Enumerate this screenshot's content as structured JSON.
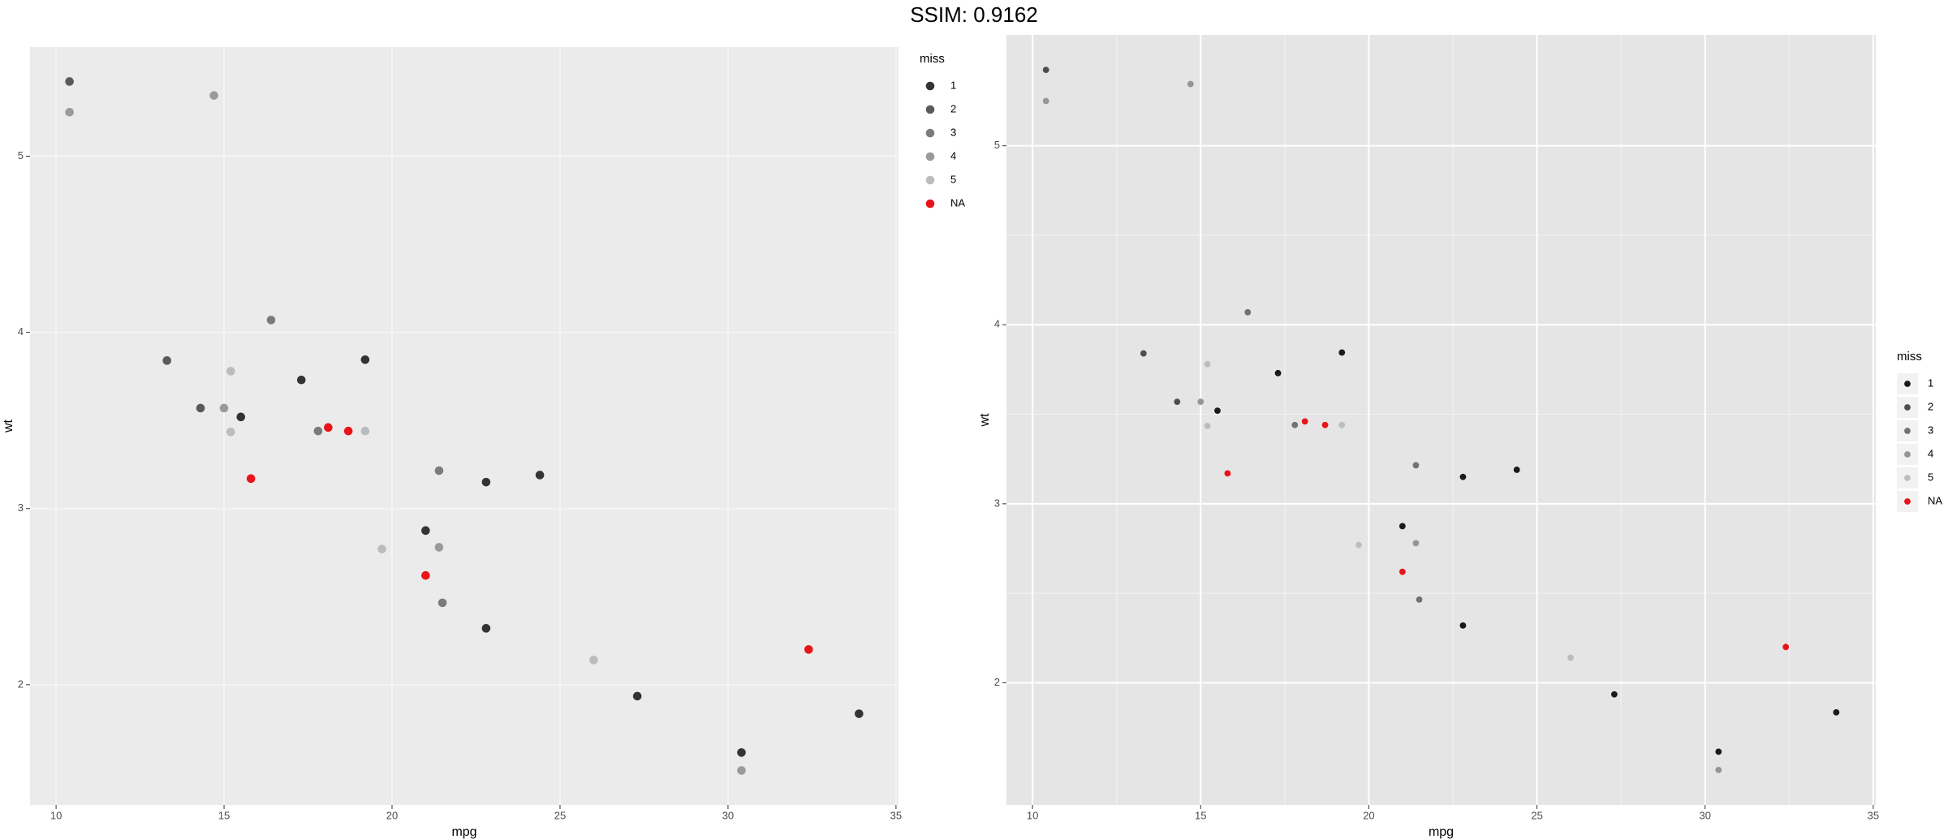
{
  "title": "SSIM: 0.9162",
  "chart_data": [
    {
      "type": "scatter",
      "x_label": "mpg",
      "y_label": "wt",
      "legend_title": "miss",
      "legend": "right-top",
      "xlim": [
        9.225,
        35.075
      ],
      "ylim": [
        1.3175,
        5.6196
      ],
      "xticks": [
        10,
        15,
        20,
        25,
        30,
        35
      ],
      "yticks": [
        2,
        3,
        4,
        5
      ],
      "grid": true,
      "minor_grid": false,
      "panel_color": "#ebebeb",
      "grid_color": "#f4f4f4",
      "series": [
        {
          "name": "1",
          "color": "#333333",
          "x": [
            22.8,
            21.0,
            22.8,
            24.4,
            17.3,
            15.5,
            19.2,
            27.3,
            30.4,
            33.9
          ],
          "values": [
            2.32,
            2.875,
            3.15,
            3.19,
            3.73,
            3.52,
            3.845,
            1.935,
            1.615,
            1.835
          ]
        },
        {
          "name": "2",
          "color": "#5a5a5a",
          "x": [
            13.3,
            14.3,
            10.4
          ],
          "values": [
            3.84,
            3.57,
            5.424
          ]
        },
        {
          "name": "3",
          "color": "#7b7b7b",
          "x": [
            16.4,
            21.4,
            21.5,
            17.8
          ],
          "values": [
            4.07,
            3.215,
            2.465,
            3.44
          ]
        },
        {
          "name": "4",
          "color": "#9a9a9a",
          "x": [
            10.4,
            14.7,
            30.4,
            21.4,
            15.0
          ],
          "values": [
            5.25,
            5.345,
            1.513,
            2.78,
            3.57
          ]
        },
        {
          "name": "5",
          "color": "#bcbcbc",
          "x": [
            15.2,
            15.2,
            19.2,
            19.7,
            26.0
          ],
          "values": [
            3.78,
            3.435,
            3.44,
            2.77,
            2.14
          ]
        },
        {
          "name": "NA",
          "color": "#e8141a",
          "x": [
            21.0,
            18.7,
            18.1,
            32.4,
            15.8
          ],
          "values": [
            2.62,
            3.44,
            3.46,
            2.2,
            3.17
          ]
        }
      ]
    },
    {
      "type": "scatter",
      "x_label": "mpg",
      "y_label": "wt",
      "legend_title": "miss",
      "legend": "right",
      "xlim": [
        9.225,
        35.075
      ],
      "ylim": [
        1.3175,
        5.6196
      ],
      "xticks": [
        10,
        15,
        20,
        25,
        30,
        35
      ],
      "yticks": [
        2,
        3,
        4,
        5
      ],
      "grid": true,
      "minor_grid": true,
      "panel_color": "#e5e5e5",
      "grid_color": "#ffffff",
      "series": [
        {
          "name": "1",
          "color": "#1a1a1a",
          "x": [
            22.8,
            21.0,
            22.8,
            24.4,
            17.3,
            15.5,
            19.2,
            27.3,
            30.4,
            33.9
          ],
          "values": [
            2.32,
            2.875,
            3.15,
            3.19,
            3.73,
            3.52,
            3.845,
            1.935,
            1.615,
            1.835
          ]
        },
        {
          "name": "2",
          "color": "#4d4d4d",
          "x": [
            13.3,
            14.3,
            10.4
          ],
          "values": [
            3.84,
            3.57,
            5.424
          ]
        },
        {
          "name": "3",
          "color": "#727272",
          "x": [
            16.4,
            21.4,
            21.5,
            17.8
          ],
          "values": [
            4.07,
            3.215,
            2.465,
            3.44
          ]
        },
        {
          "name": "4",
          "color": "#959595",
          "x": [
            10.4,
            14.7,
            30.4,
            21.4,
            15.0
          ],
          "values": [
            5.25,
            5.345,
            1.513,
            2.78,
            3.57
          ]
        },
        {
          "name": "5",
          "color": "#bdbdbd",
          "x": [
            15.2,
            15.2,
            19.2,
            19.7,
            26.0
          ],
          "values": [
            3.78,
            3.435,
            3.44,
            2.77,
            2.14
          ]
        },
        {
          "name": "NA",
          "color": "#e8141a",
          "x": [
            21.0,
            18.7,
            18.1,
            32.4,
            15.8
          ],
          "values": [
            2.62,
            3.44,
            3.46,
            2.2,
            3.17
          ]
        }
      ]
    }
  ]
}
